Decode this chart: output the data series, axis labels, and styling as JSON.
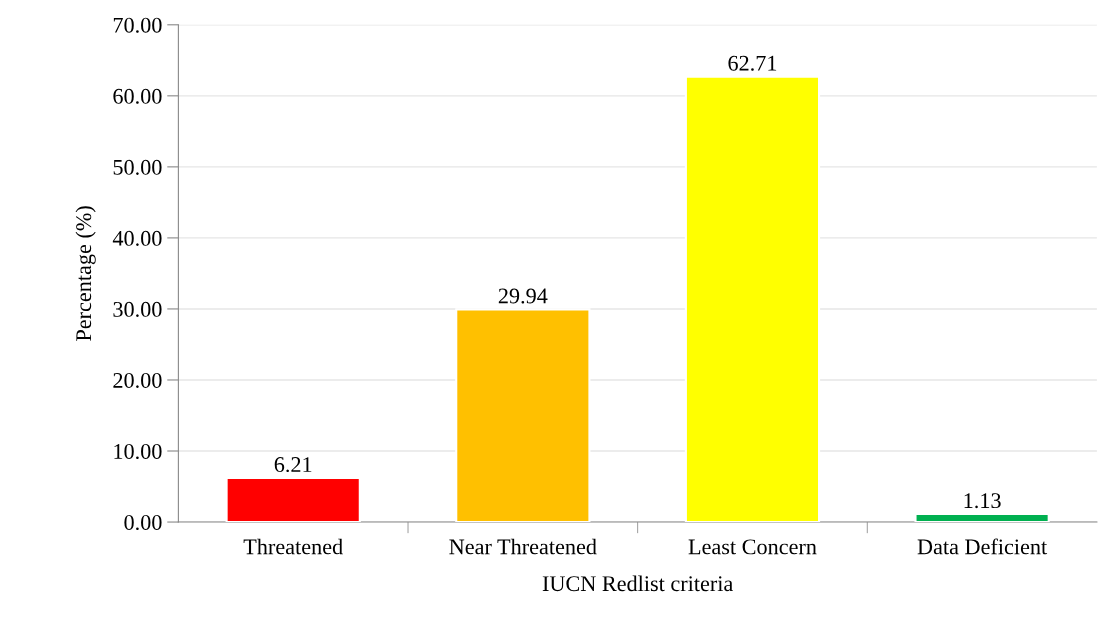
{
  "chart_data": {
    "type": "bar",
    "xlabel": "IUCN Redlist criteria",
    "ylabel": "Percentage (%)",
    "categories": [
      "Threatened",
      "Near Threatened",
      "Least Concern",
      "Data Deficient"
    ],
    "values": [
      6.21,
      29.94,
      62.71,
      1.13
    ],
    "colors": [
      "#ff0000",
      "#ffc000",
      "#ffff00",
      "#00b050"
    ],
    "ylim": [
      0,
      70
    ],
    "yticks": [
      {
        "value": 0,
        "label": "0.00"
      },
      {
        "value": 10,
        "label": "10.00"
      },
      {
        "value": 20,
        "label": "20.00"
      },
      {
        "value": 30,
        "label": "30.00"
      },
      {
        "value": 40,
        "label": "40.00"
      },
      {
        "value": 50,
        "label": "50.00"
      },
      {
        "value": 60,
        "label": "60.00"
      },
      {
        "value": 70,
        "label": "70.00"
      }
    ],
    "grid": "y",
    "data_labels": true,
    "legend": false
  }
}
